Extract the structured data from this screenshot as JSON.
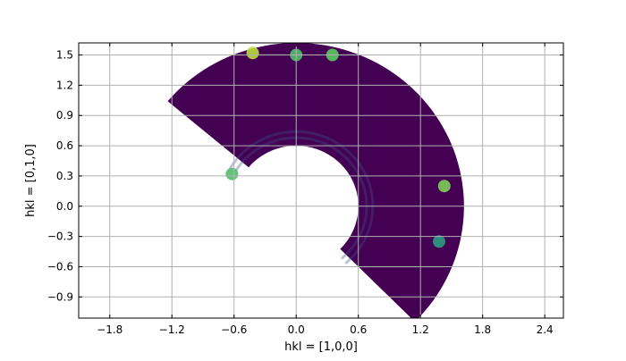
{
  "chart_data": {
    "type": "heatmap",
    "title": "",
    "xlabel": "hkl = [1,0,0]",
    "ylabel": "hkl = [0,1,0]",
    "xlim": [
      -2.1,
      2.58
    ],
    "ylim": [
      -1.11,
      1.62
    ],
    "xticks": [
      -1.8,
      -1.2,
      -0.6,
      0.0,
      0.6,
      1.2,
      1.8,
      2.4
    ],
    "xtick_labels": [
      "−1.8",
      "−1.2",
      "−0.6",
      "0.0",
      "0.6",
      "1.2",
      "1.8",
      "2.4"
    ],
    "yticks": [
      1.5,
      1.2,
      0.9,
      0.6,
      0.3,
      0.0,
      -0.3,
      -0.6,
      -0.9
    ],
    "ytick_labels": [
      "1.5",
      "1.2",
      "0.9",
      "0.6",
      "0.3",
      "0.0",
      "−0.3",
      "−0.6",
      "−0.9"
    ],
    "grid": true,
    "colormap": "viridis",
    "background_color": "#440154",
    "coverage": {
      "center": [
        0.0,
        0.0
      ],
      "inner_radius": 0.6,
      "outer_radius": 1.62,
      "angle_start_deg": 140,
      "angle_end_deg": -45
    },
    "hotspots": [
      {
        "x": 1.43,
        "y": 0.2,
        "intensity": 0.8
      },
      {
        "x": 1.38,
        "y": -0.35,
        "intensity": 0.55
      },
      {
        "x": 0.0,
        "y": 1.5,
        "intensity": 0.7
      },
      {
        "x": -0.42,
        "y": 1.52,
        "intensity": 0.9
      },
      {
        "x": 0.35,
        "y": 1.5,
        "intensity": 0.75
      },
      {
        "x": -0.62,
        "y": 0.32,
        "intensity": 0.7
      }
    ]
  }
}
